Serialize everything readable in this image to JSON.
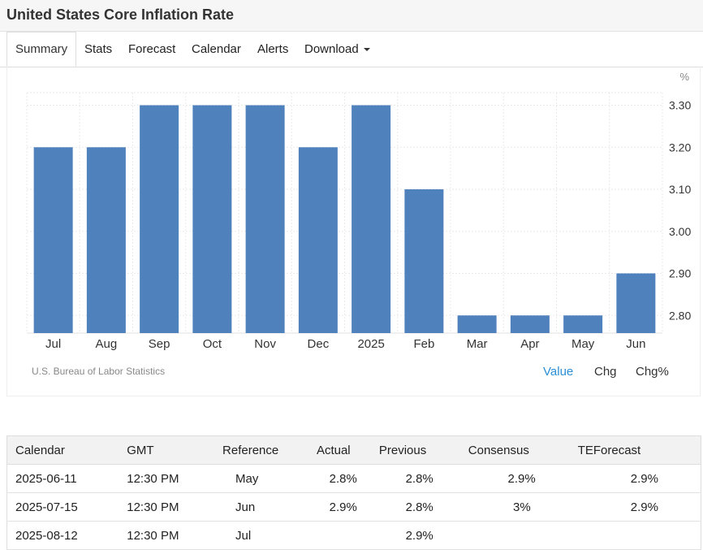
{
  "page": {
    "title": "United States Core Inflation Rate"
  },
  "tabs": [
    {
      "label": "Summary",
      "active": true
    },
    {
      "label": "Stats"
    },
    {
      "label": "Forecast"
    },
    {
      "label": "Calendar"
    },
    {
      "label": "Alerts"
    },
    {
      "label": "Download"
    }
  ],
  "chart_data": {
    "type": "bar",
    "unit": "%",
    "categories": [
      "Jul",
      "Aug",
      "Sep",
      "Oct",
      "Nov",
      "Dec",
      "2025",
      "Feb",
      "Mar",
      "Apr",
      "May",
      "Jun"
    ],
    "values": [
      3.2,
      3.2,
      3.3,
      3.3,
      3.3,
      3.2,
      3.3,
      3.1,
      2.8,
      2.8,
      2.8,
      2.9
    ],
    "y_ticks": [
      "3.30",
      "3.20",
      "3.10",
      "3.00",
      "2.90",
      "2.80"
    ],
    "ylim": [
      2.758,
      3.33
    ],
    "grid": true,
    "bar_color": "#4f81bd"
  },
  "source": "U.S. Bureau of Labor Statistics",
  "view_options": [
    {
      "label": "Value",
      "active": true
    },
    {
      "label": "Chg"
    },
    {
      "label": "Chg%"
    }
  ],
  "calendar": {
    "headers": [
      "Calendar",
      "GMT",
      "Reference",
      "Actual",
      "Previous",
      "Consensus",
      "TEForecast"
    ],
    "rows": [
      [
        "2025-06-11",
        "12:30 PM",
        "May",
        "2.8%",
        "2.8%",
        "2.9%",
        "2.9%"
      ],
      [
        "2025-07-15",
        "12:30 PM",
        "Jun",
        "2.9%",
        "2.8%",
        "3%",
        "2.9%"
      ],
      [
        "2025-08-12",
        "12:30 PM",
        "Jul",
        "",
        "2.9%",
        "",
        ""
      ]
    ]
  }
}
